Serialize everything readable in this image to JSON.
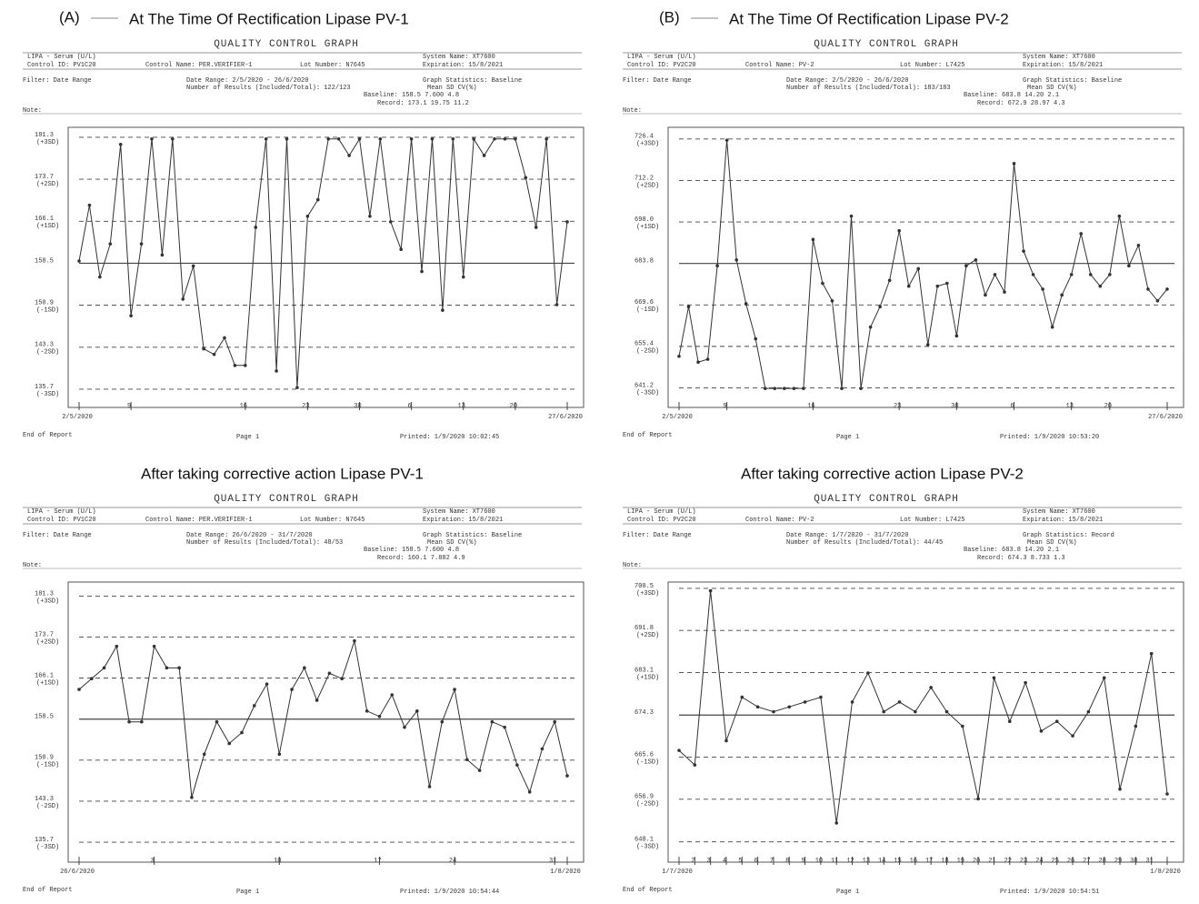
{
  "chart_data": [
    {
      "type": "line",
      "panel_label": "(A)",
      "heading": "At The Time Of Rectification Lipase PV-1",
      "title": "QUALITY CONTROL GRAPH",
      "header": [
        "LIPA - Serum (U/L)",
        "Control ID: PV1C20",
        "Control Name: PER.VERIFIER-1",
        "Lot Number: N7645",
        "System Name: XT7600",
        "Expiration: 15/8/2021",
        "Filter:  Date Range",
        "Date Range: 2/5/2020 - 26/6/2020",
        "Number of Results (Included/Total): 122/123",
        "Graph Statistics: Baseline",
        "Mean       SD      CV(%)",
        "Baseline:  158.5    7.600   4.8",
        "Record:  173.1    19.75   11.2",
        "Note:"
      ],
      "footer": [
        "End of Report",
        "Page 1",
        "Printed: 1/9/2020 10:02:45"
      ],
      "ylim": [
        132.4,
        183.1
      ],
      "yticks": [
        135.7,
        143.3,
        150.9,
        158.5,
        166.1,
        173.7,
        181.3
      ],
      "ytick_sublabels": [
        "(-3SD)",
        "(-2SD)",
        "(-1SD)",
        null,
        "(+1SD)",
        "(+2SD)",
        "(+3SD)"
      ],
      "categories": [
        "2/5/2020",
        null,
        null,
        null,
        null,
        "9",
        null,
        null,
        null,
        null,
        null,
        null,
        null,
        null,
        null,
        null,
        "16",
        null,
        null,
        null,
        null,
        null,
        "23",
        null,
        null,
        null,
        null,
        "30",
        null,
        null,
        null,
        null,
        "6",
        null,
        null,
        null,
        null,
        "13",
        null,
        null,
        null,
        null,
        "20",
        null,
        null,
        null,
        null,
        "27/6/2020"
      ],
      "values": [
        158.9,
        169,
        156,
        162,
        180,
        149,
        162,
        181,
        160,
        181,
        152,
        158,
        143,
        142,
        145,
        140,
        140,
        165,
        181,
        139,
        181,
        136,
        167,
        170,
        181,
        181,
        178,
        181,
        167,
        181,
        166,
        161,
        181,
        157,
        181,
        150,
        181,
        156,
        181,
        178,
        181,
        181,
        181,
        174,
        165,
        181,
        151,
        166
      ],
      "color": "#333333"
    },
    {
      "type": "line",
      "panel_label": "(B)",
      "heading": "At The Time Of Rectification Lipase PV-2",
      "title": "QUALITY CONTROL GRAPH",
      "header": [
        "LIPA - Serum (U/L)",
        "Control ID: PV2C20",
        "Control Name: PV-2",
        "Lot Number: L7425",
        "System Name: XT7600",
        "Expiration: 15/8/2021",
        "Filter:  Date Range",
        "Date Range: 2/5/2020 - 26/6/2020",
        "Number of Results (Included/Total): 183/183",
        "Graph Statistics: Baseline",
        "Mean       SD      CV(%)",
        "Baseline:  683.8    14.20   2.1",
        "Record:  672.9    28.97   4.3",
        "Note:"
      ],
      "footer": [
        "End of Report",
        "Page 1",
        "Printed: 1/9/2020 10:53:20"
      ],
      "ylim": [
        634.5,
        730.4
      ],
      "yticks": [
        641.2,
        655.4,
        669.6,
        683.8,
        {
          "value": 698,
          "label": "698.0"
        },
        712.2,
        726.4
      ],
      "ytick_sublabels": [
        "(-3SD)",
        "(-2SD)",
        "(-1SD)",
        null,
        "(+1SD)",
        "(+2SD)",
        "(+3SD)"
      ],
      "categories": [
        "2/5/2020",
        null,
        null,
        null,
        null,
        "9",
        null,
        null,
        null,
        null,
        null,
        null,
        null,
        null,
        "16",
        null,
        null,
        null,
        null,
        null,
        null,
        null,
        null,
        "23",
        null,
        null,
        null,
        null,
        null,
        "30",
        null,
        null,
        null,
        null,
        null,
        "6",
        null,
        null,
        null,
        null,
        null,
        "13",
        null,
        null,
        null,
        "20",
        null,
        null,
        null,
        null,
        null,
        "27/6/2020"
      ],
      "values": [
        652,
        669,
        650,
        651,
        683,
        726,
        685,
        670,
        658,
        641,
        641,
        641,
        641,
        641,
        692,
        677,
        671,
        641,
        700,
        641,
        662,
        669,
        678,
        695,
        676,
        682,
        656,
        676,
        677,
        659,
        683,
        685,
        673,
        680,
        674,
        718,
        688,
        680,
        675,
        662,
        673,
        680,
        694,
        680,
        676,
        680,
        700,
        683,
        690,
        675,
        671,
        675
      ],
      "color": "#333333"
    },
    {
      "type": "line",
      "heading": "After  taking  corrective action Lipase PV-1",
      "title": "QUALITY CONTROL GRAPH",
      "header": [
        "LIPA - Serum (U/L)",
        "Control ID: PV1C20",
        "Control Name: PER.VERIFIER-1",
        "Lot Number: N7645",
        "System Name: XT7600",
        "Expiration: 15/8/2021",
        "Filter:  Date Range",
        "Date Range: 26/6/2020 - 31/7/2020",
        "Number of Results (Included/Total): 48/53",
        "Graph Statistics: Baseline",
        "Mean       SD      CV(%)",
        "Baseline:  158.5    7.600   4.8",
        "Record:  160.1    7.882   4.9",
        "Note:"
      ],
      "footer": [
        "End of Report",
        "Page 1",
        "Printed: 1/9/2020 10:54:44"
      ],
      "ylim": [
        132,
        183.9
      ],
      "yticks": [
        135.7,
        143.3,
        150.9,
        158.5,
        166.1,
        173.7,
        181.3
      ],
      "ytick_sublabels": [
        "(-3SD)",
        "(-2SD)",
        "(-1SD)",
        null,
        "(+1SD)",
        "(+2SD)",
        "(+3SD)"
      ],
      "categories": [
        "26/6/2020",
        null,
        null,
        null,
        null,
        null,
        "3",
        null,
        null,
        null,
        null,
        null,
        null,
        null,
        null,
        null,
        "10",
        null,
        null,
        null,
        null,
        null,
        null,
        null,
        "17",
        null,
        null,
        null,
        null,
        null,
        "24",
        null,
        null,
        null,
        null,
        null,
        null,
        null,
        "31",
        "1/8/2020"
      ],
      "values": [
        164,
        166,
        168,
        172,
        158,
        158,
        172,
        168,
        168,
        144,
        152,
        158,
        154,
        156,
        161,
        165,
        152,
        164,
        168,
        162,
        167,
        166,
        173,
        160,
        159,
        163,
        157,
        160,
        146,
        158,
        164,
        151,
        149,
        158,
        157,
        150,
        145,
        153,
        158,
        148
      ],
      "color": "#333333"
    },
    {
      "type": "line",
      "heading": "After  taking  corrective action Lipase PV-2",
      "title": "QUALITY CONTROL GRAPH",
      "header": [
        "LIPA - Serum (U/L)",
        "Control ID: PV2C20",
        "Control Name: PV-2",
        "Lot Number: L7425",
        "System Name: XT7600",
        "Expiration: 15/8/2021",
        "Filter:  Date Range",
        "Date Range: 1/7/2020 - 31/7/2020",
        "Number of Results (Included/Total): 44/45",
        "Graph Statistics: Record",
        "Mean       SD      CV(%)",
        "Baseline:  683.8    14.20   2.1",
        "Record:  674.3    8.733   1.3",
        "Note:"
      ],
      "footer": [
        "End of Report",
        "Page 1",
        "Printed: 1/9/2020 10:54:51"
      ],
      "ylim": [
        643.9,
        701.8
      ],
      "yticks": [
        648.1,
        656.9,
        665.6,
        674.3,
        683.1,
        691.8,
        700.5
      ],
      "ytick_sublabels": [
        "(-3SD)",
        "(-2SD)",
        "(-1SD)",
        null,
        "(+1SD)",
        "(+2SD)",
        "(+3SD)"
      ],
      "categories": [
        "1/7/2020",
        "2",
        "3",
        "4",
        "5",
        "6",
        "7",
        "8",
        "9",
        "10",
        "11",
        "12",
        "13",
        "14",
        "15",
        "16",
        "17",
        "18",
        "19",
        "20",
        "21",
        "22",
        "23",
        "24",
        "25",
        "26",
        "27",
        "28",
        "29",
        "30",
        "31",
        "1/8/2020"
      ],
      "values": [
        667,
        664,
        700,
        669,
        678,
        676,
        675,
        676,
        677,
        678,
        652,
        677,
        683,
        675,
        677,
        675,
        680,
        675,
        672,
        657,
        682,
        673,
        681,
        671,
        673,
        670,
        675,
        682,
        659,
        672,
        687,
        658
      ],
      "color": "#333333"
    }
  ]
}
